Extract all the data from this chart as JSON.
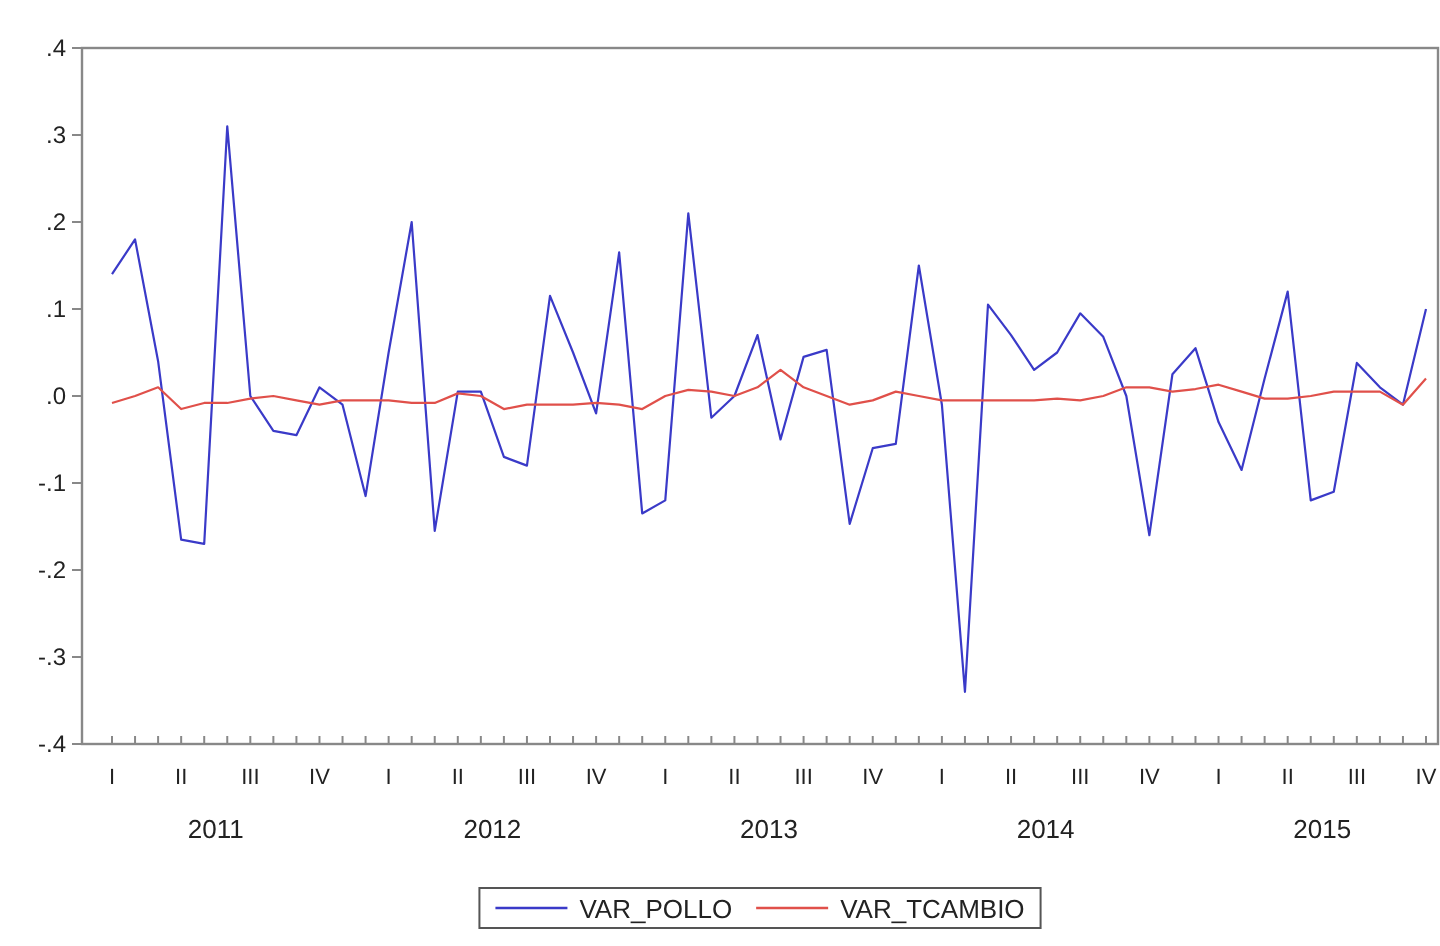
{
  "chart_data": {
    "type": "line",
    "legend": "bottom",
    "marker": "none",
    "line_style": "solid",
    "categories": [
      "I",
      null,
      null,
      "II",
      null,
      null,
      "III",
      null,
      null,
      "IV",
      null,
      null,
      "I",
      null,
      null,
      "II",
      null,
      null,
      "III",
      null,
      null,
      "IV",
      null,
      null,
      "I",
      null,
      null,
      "II",
      null,
      null,
      "III",
      null,
      null,
      "IV",
      null,
      null,
      "I",
      null,
      null,
      "II",
      null,
      null,
      "III",
      null,
      null,
      "IV",
      null,
      null,
      "I",
      null,
      null,
      "II",
      null,
      null,
      "III",
      null,
      null,
      "IV"
    ],
    "annotations": [
      "2011",
      "2012",
      "2013",
      "2014",
      "2015"
    ],
    "series": [
      {
        "name": "VAR_POLLO",
        "color": "#3a3ac8",
        "values": [
          0.14,
          0.18,
          0.04,
          -0.165,
          -0.17,
          0.31,
          0.0,
          -0.04,
          -0.045,
          0.01,
          -0.01,
          -0.115,
          0.05,
          0.2,
          -0.155,
          0.005,
          0.005,
          -0.07,
          -0.08,
          0.115,
          0.05,
          -0.02,
          0.165,
          -0.135,
          -0.12,
          0.21,
          -0.025,
          0.0,
          0.07,
          -0.05,
          0.045,
          0.053,
          -0.147,
          -0.06,
          -0.055,
          0.15,
          -0.01,
          -0.34,
          0.105,
          0.07,
          0.03,
          0.05,
          0.095,
          0.068,
          0.0,
          -0.16,
          0.025,
          0.055,
          -0.03,
          -0.085,
          0.02,
          0.12,
          -0.12,
          -0.11,
          0.038,
          0.01,
          -0.01,
          0.1
        ]
      },
      {
        "name": "VAR_TCAMBIO",
        "color": "#e0504a",
        "values": [
          -0.008,
          0.0,
          0.01,
          -0.015,
          -0.008,
          -0.008,
          -0.003,
          0.0,
          -0.005,
          -0.01,
          -0.005,
          -0.005,
          -0.005,
          -0.008,
          -0.008,
          0.003,
          0.0,
          -0.015,
          -0.01,
          -0.01,
          -0.01,
          -0.008,
          -0.01,
          -0.015,
          0.0,
          0.007,
          0.005,
          0.0,
          0.01,
          0.03,
          0.01,
          0.0,
          -0.01,
          -0.005,
          0.005,
          0.0,
          -0.005,
          -0.005,
          -0.005,
          -0.005,
          -0.005,
          -0.003,
          -0.005,
          0.0,
          0.01,
          0.01,
          0.005,
          0.008,
          0.013,
          0.005,
          -0.003,
          -0.003,
          0.0,
          0.005,
          0.005,
          0.005,
          -0.01,
          0.02
        ]
      }
    ],
    "ylim": [
      -0.4,
      0.4
    ],
    "yticks": [
      {
        "value": -0.4,
        "label": "-.4"
      },
      {
        "value": -0.3,
        "label": "-.3"
      },
      {
        "value": -0.2,
        "label": "-.2"
      },
      {
        "value": -0.1,
        "label": "-.1"
      },
      {
        "value": 0,
        "label": ".0"
      },
      {
        "value": 0.1,
        "label": ".1"
      },
      {
        "value": 0.2,
        "label": ".2"
      },
      {
        "value": 0.3,
        "label": ".3"
      },
      {
        "value": 0.4,
        "label": ".4"
      }
    ]
  }
}
